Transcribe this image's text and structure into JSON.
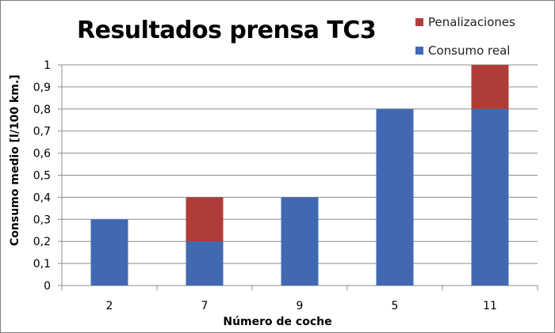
{
  "chart_data": {
    "type": "bar",
    "stacked": true,
    "title": "Resultados prensa TC3",
    "xlabel": "Número de coche",
    "ylabel": "Consumo medio [l/100 km.]",
    "categories": [
      "2",
      "7",
      "9",
      "5",
      "11"
    ],
    "series": [
      {
        "name": "Consumo real",
        "color": "#4169b2",
        "values": [
          0.3,
          0.2,
          0.4,
          0.8,
          0.8
        ]
      },
      {
        "name": "Penalizaciones",
        "color": "#b03c3a",
        "values": [
          0,
          0.2,
          0,
          0,
          0.2
        ]
      }
    ],
    "ylim": [
      0,
      1
    ],
    "yticks": [
      "0",
      "0,1",
      "0,2",
      "0,3",
      "0,4",
      "0,5",
      "0,6",
      "0,7",
      "0,8",
      "0,9",
      "1"
    ],
    "grid": true,
    "legend_position": "top-right"
  },
  "legend": [
    {
      "label": "Penalizaciones",
      "color": "#b03c3a"
    },
    {
      "label": "Consumo real",
      "color": "#4169b2"
    }
  ]
}
